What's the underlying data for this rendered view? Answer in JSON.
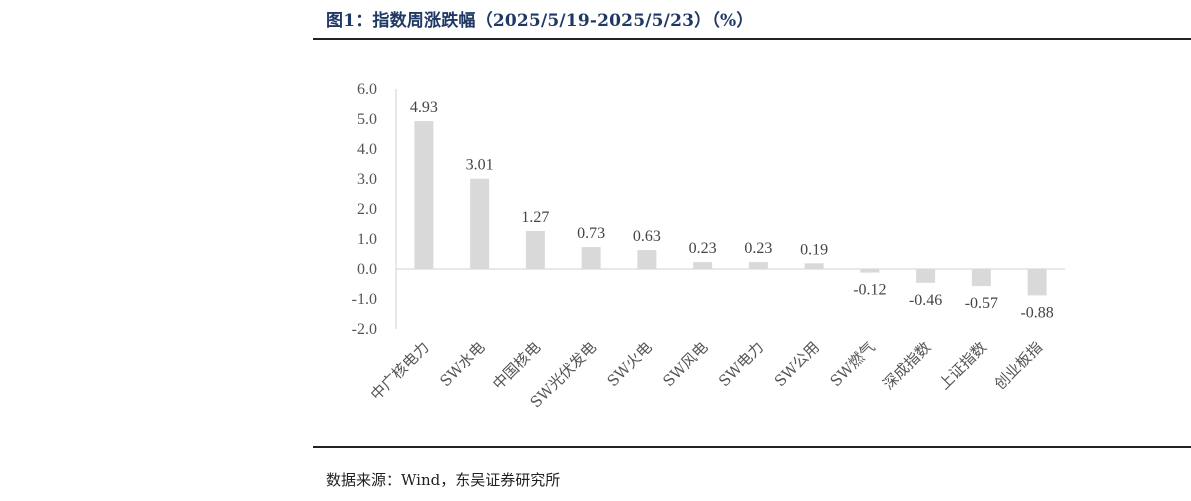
{
  "title": "图1：指数周涨跌幅（2025/5/19-2025/5/23）（%）",
  "source": "数据来源：Wind，东吴证券研究所",
  "chart_data": {
    "type": "bar",
    "categories": [
      "中广核电力",
      "SW水电",
      "中国核电",
      "SW光伏发电",
      "SW火电",
      "SW风电",
      "SW电力",
      "SW公用",
      "SW燃气",
      "深成指数",
      "上证指数",
      "创业板指"
    ],
    "values": [
      4.93,
      3.01,
      1.27,
      0.73,
      0.63,
      0.23,
      0.23,
      0.19,
      -0.12,
      -0.46,
      -0.57,
      -0.88
    ],
    "data_labels": [
      "4.93",
      "3.01",
      "1.27",
      "0.73",
      "0.63",
      "0.23",
      "0.23",
      "0.19",
      "-0.12",
      "-0.46",
      "-0.57",
      "-0.88"
    ],
    "yticks": [
      "-2.0",
      "-1.0",
      "0.0",
      "1.0",
      "2.0",
      "3.0",
      "4.0",
      "5.0",
      "6.0"
    ],
    "ylim": [
      -2,
      6
    ],
    "bar_color": "#d9d9d9",
    "grid": false
  }
}
